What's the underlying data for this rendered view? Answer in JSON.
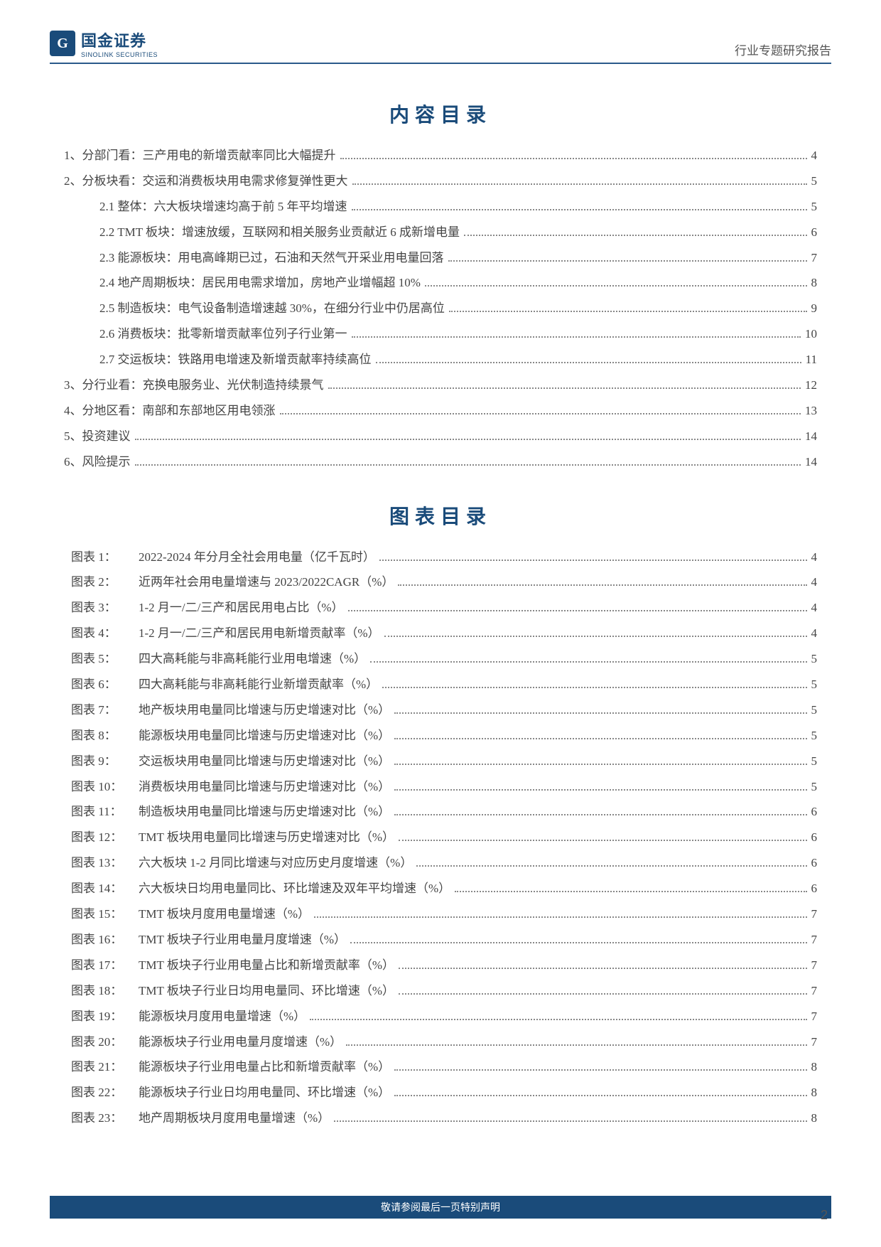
{
  "header": {
    "logo_cn": "国金证券",
    "logo_en": "SINOLINK SECURITIES",
    "right_text": "行业专题研究报告"
  },
  "titles": {
    "toc": "内容目录",
    "figures": "图表目录"
  },
  "toc": [
    {
      "indent": 0,
      "label": "1、分部门看：三产用电的新增贡献率同比大幅提升",
      "page": "4"
    },
    {
      "indent": 0,
      "label": "2、分板块看：交运和消费板块用电需求修复弹性更大",
      "page": "5"
    },
    {
      "indent": 1,
      "label": "2.1 整体：六大板块增速均高于前 5 年平均增速",
      "page": "5"
    },
    {
      "indent": 1,
      "label": "2.2 TMT 板块：增速放缓，互联网和相关服务业贡献近 6 成新增电量",
      "page": "6"
    },
    {
      "indent": 1,
      "label": "2.3 能源板块：用电高峰期已过，石油和天然气开采业用电量回落",
      "page": "7"
    },
    {
      "indent": 1,
      "label": "2.4 地产周期板块：居民用电需求增加，房地产业增幅超 10%",
      "page": "8"
    },
    {
      "indent": 1,
      "label": "2.5 制造板块：电气设备制造增速越 30%，在细分行业中仍居高位",
      "page": "9"
    },
    {
      "indent": 1,
      "label": "2.6 消费板块：批零新增贡献率位列子行业第一",
      "page": "10"
    },
    {
      "indent": 1,
      "label": "2.7 交运板块：铁路用电增速及新增贡献率持续高位",
      "page": "11"
    },
    {
      "indent": 0,
      "label": "3、分行业看：充换电服务业、光伏制造持续景气",
      "page": "12"
    },
    {
      "indent": 0,
      "label": "4、分地区看：南部和东部地区用电领涨",
      "page": "13"
    },
    {
      "indent": 0,
      "label": "5、投资建议",
      "page": "14"
    },
    {
      "indent": 0,
      "label": "6、风险提示",
      "page": "14"
    }
  ],
  "figures": [
    {
      "num": "图表 1：",
      "title": "2022-2024 年分月全社会用电量（亿千瓦时）",
      "page": "4"
    },
    {
      "num": "图表 2：",
      "title": "近两年社会用电量增速与 2023/2022CAGR（%）",
      "page": "4"
    },
    {
      "num": "图表 3：",
      "title": "1-2 月一/二/三产和居民用电占比（%）",
      "page": "4"
    },
    {
      "num": "图表 4：",
      "title": "1-2 月一/二/三产和居民用电新增贡献率（%）",
      "page": "4"
    },
    {
      "num": "图表 5：",
      "title": "四大高耗能与非高耗能行业用电增速（%）",
      "page": "5"
    },
    {
      "num": "图表 6：",
      "title": "四大高耗能与非高耗能行业新增贡献率（%）",
      "page": "5"
    },
    {
      "num": "图表 7：",
      "title": "地产板块用电量同比增速与历史增速对比（%）",
      "page": "5"
    },
    {
      "num": "图表 8：",
      "title": "能源板块用电量同比增速与历史增速对比（%）",
      "page": "5"
    },
    {
      "num": "图表 9：",
      "title": "交运板块用电量同比增速与历史增速对比（%）",
      "page": "5"
    },
    {
      "num": "图表 10：",
      "title": "消费板块用电量同比增速与历史增速对比（%）",
      "page": "5"
    },
    {
      "num": "图表 11：",
      "title": "制造板块用电量同比增速与历史增速对比（%）",
      "page": "6"
    },
    {
      "num": "图表 12：",
      "title": "TMT 板块用电量同比增速与历史增速对比（%）",
      "page": "6"
    },
    {
      "num": "图表 13：",
      "title": "六大板块 1-2 月同比增速与对应历史月度增速（%）",
      "page": "6"
    },
    {
      "num": "图表 14：",
      "title": "六大板块日均用电量同比、环比增速及双年平均增速（%）",
      "page": "6"
    },
    {
      "num": "图表 15：",
      "title": "TMT 板块月度用电量增速（%）",
      "page": "7"
    },
    {
      "num": "图表 16：",
      "title": "TMT 板块子行业用电量月度增速（%）",
      "page": "7"
    },
    {
      "num": "图表 17：",
      "title": "TMT 板块子行业用电量占比和新增贡献率（%）",
      "page": "7"
    },
    {
      "num": "图表 18：",
      "title": "TMT 板块子行业日均用电量同、环比增速（%）",
      "page": "7"
    },
    {
      "num": "图表 19：",
      "title": "能源板块月度用电量增速（%）",
      "page": "7"
    },
    {
      "num": "图表 20：",
      "title": "能源板块子行业用电量月度增速（%）",
      "page": "7"
    },
    {
      "num": "图表 21：",
      "title": "能源板块子行业用电量占比和新增贡献率（%）",
      "page": "8"
    },
    {
      "num": "图表 22：",
      "title": "能源板块子行业日均用电量同、环比增速（%）",
      "page": "8"
    },
    {
      "num": "图表 23：",
      "title": "地产周期板块月度用电量增速（%）",
      "page": "8"
    }
  ],
  "footer": {
    "text": "敬请参阅最后一页特别声明",
    "page_num": "2"
  }
}
